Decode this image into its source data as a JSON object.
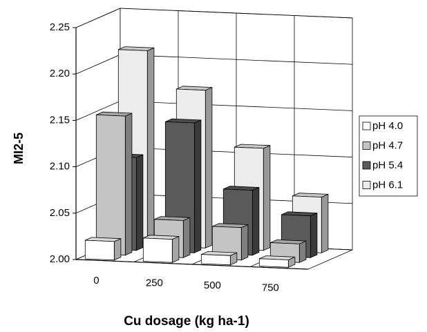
{
  "chart_data": {
    "type": "bar3d",
    "y_label": "MI2-5",
    "x_label": "Cu dosage (kg ha-1)",
    "categories": [
      "0",
      "250",
      "500",
      "750"
    ],
    "series": [
      {
        "name": "pH 4.0",
        "color": "#ffffff",
        "values": [
          2.02,
          2.025,
          2.01,
          2.008
        ]
      },
      {
        "name": "pH 4.7",
        "color": "#c4c4c4",
        "values": [
          2.15,
          2.04,
          2.035,
          2.02
        ]
      },
      {
        "name": "pH 5.4",
        "color": "#5a5a5a",
        "values": [
          2.1,
          2.14,
          2.07,
          2.045
        ]
      },
      {
        "name": "pH 6.1",
        "color": "#ececec",
        "values": [
          2.21,
          2.17,
          2.11,
          2.06
        ]
      }
    ],
    "ylim": [
      2.0,
      2.25
    ],
    "yticks": [
      {
        "value": 2.0,
        "label": "2.00"
      },
      {
        "value": 2.05,
        "label": "2.05"
      },
      {
        "value": 2.1,
        "label": "2.10"
      },
      {
        "value": 2.15,
        "label": "2.15"
      },
      {
        "value": 2.2,
        "label": "2.20"
      },
      {
        "value": 2.25,
        "label": "2.25"
      }
    ],
    "grid": true
  }
}
